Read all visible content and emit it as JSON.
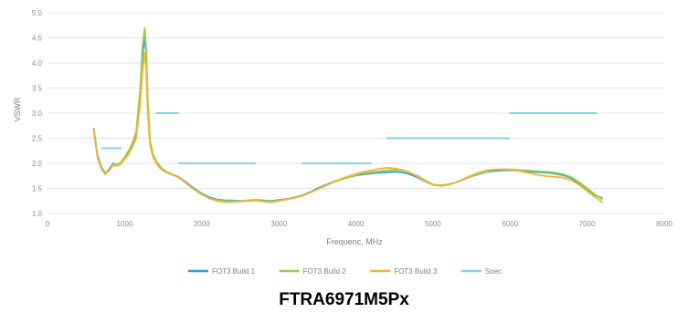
{
  "caption": "FTRA6971M5Px",
  "chart_data": {
    "type": "line",
    "title": "",
    "xlabel": "Frequenc, MHz",
    "ylabel": "VSWR",
    "xlim": [
      0,
      8000
    ],
    "ylim": [
      1.0,
      5.0
    ],
    "xticks": [
      0,
      1000,
      2000,
      3000,
      4000,
      5000,
      6000,
      7000,
      8000
    ],
    "yticks": [
      1.0,
      1.5,
      2.0,
      2.5,
      3.0,
      3.5,
      4.0,
      4.5,
      5.0
    ],
    "xtick_labels": [
      "0",
      "1000",
      "2000",
      "3000",
      "4000",
      "5000",
      "6000",
      "7000",
      "8000"
    ],
    "ytick_labels": [
      "1.0",
      "1.5",
      "2.0",
      "2.5",
      "3.0",
      "3.5",
      "4.0",
      "4.5",
      "5.0"
    ],
    "grid": "horizontal",
    "legend_position": "bottom",
    "series": [
      {
        "name": "FOT3 Build 1",
        "color": "#2e9fd4",
        "x": [
          600,
          650,
          700,
          750,
          800,
          850,
          900,
          950,
          1000,
          1050,
          1100,
          1150,
          1200,
          1230,
          1260,
          1280,
          1300,
          1330,
          1370,
          1420,
          1480,
          1550,
          1620,
          1700,
          1800,
          1900,
          2000,
          2100,
          2200,
          2300,
          2400,
          2500,
          2600,
          2700,
          2800,
          2900,
          3000,
          3100,
          3200,
          3300,
          3400,
          3500,
          3600,
          3700,
          3800,
          3900,
          4000,
          4100,
          4200,
          4300,
          4400,
          4500,
          4600,
          4700,
          4800,
          4900,
          5000,
          5100,
          5200,
          5300,
          5400,
          5500,
          5600,
          5700,
          5800,
          5900,
          6000,
          6100,
          6200,
          6300,
          6400,
          6500,
          6600,
          6700,
          6800,
          6900,
          7000,
          7100,
          7200
        ],
        "y": [
          2.7,
          2.15,
          1.92,
          1.8,
          1.88,
          2.0,
          1.97,
          2.0,
          2.1,
          2.2,
          2.35,
          2.55,
          3.3,
          4.1,
          4.55,
          4.2,
          3.2,
          2.4,
          2.15,
          2.0,
          1.88,
          1.82,
          1.78,
          1.73,
          1.62,
          1.5,
          1.4,
          1.32,
          1.28,
          1.26,
          1.26,
          1.25,
          1.26,
          1.27,
          1.26,
          1.25,
          1.27,
          1.29,
          1.32,
          1.36,
          1.42,
          1.5,
          1.57,
          1.63,
          1.68,
          1.72,
          1.76,
          1.78,
          1.8,
          1.81,
          1.82,
          1.83,
          1.82,
          1.78,
          1.72,
          1.64,
          1.57,
          1.56,
          1.58,
          1.62,
          1.68,
          1.74,
          1.79,
          1.83,
          1.85,
          1.86,
          1.86,
          1.86,
          1.84,
          1.83,
          1.82,
          1.81,
          1.79,
          1.76,
          1.7,
          1.6,
          1.48,
          1.37,
          1.3
        ]
      },
      {
        "name": "FOT3 Build 2",
        "color": "#92d050",
        "x": [
          600,
          650,
          700,
          750,
          800,
          850,
          900,
          950,
          1000,
          1050,
          1100,
          1150,
          1200,
          1230,
          1260,
          1280,
          1300,
          1330,
          1370,
          1420,
          1480,
          1550,
          1620,
          1700,
          1800,
          1900,
          2000,
          2100,
          2200,
          2300,
          2400,
          2500,
          2600,
          2700,
          2800,
          2900,
          3000,
          3100,
          3200,
          3300,
          3400,
          3500,
          3600,
          3700,
          3800,
          3900,
          4000,
          4100,
          4200,
          4300,
          4400,
          4500,
          4600,
          4700,
          4800,
          4900,
          5000,
          5100,
          5200,
          5300,
          5400,
          5500,
          5600,
          5700,
          5800,
          5900,
          6000,
          6100,
          6200,
          6300,
          6400,
          6500,
          6600,
          6700,
          6800,
          6900,
          7000,
          7100,
          7200
        ],
        "y": [
          2.65,
          2.12,
          1.9,
          1.8,
          1.85,
          1.98,
          1.98,
          2.02,
          2.12,
          2.25,
          2.4,
          2.62,
          3.45,
          4.3,
          4.7,
          4.3,
          3.3,
          2.45,
          2.18,
          2.02,
          1.9,
          1.83,
          1.78,
          1.72,
          1.6,
          1.48,
          1.38,
          1.3,
          1.27,
          1.25,
          1.25,
          1.24,
          1.25,
          1.26,
          1.25,
          1.24,
          1.26,
          1.28,
          1.31,
          1.35,
          1.41,
          1.48,
          1.55,
          1.62,
          1.67,
          1.72,
          1.77,
          1.8,
          1.82,
          1.84,
          1.86,
          1.87,
          1.86,
          1.82,
          1.75,
          1.66,
          1.58,
          1.56,
          1.58,
          1.62,
          1.68,
          1.75,
          1.8,
          1.84,
          1.87,
          1.88,
          1.88,
          1.87,
          1.86,
          1.85,
          1.84,
          1.83,
          1.81,
          1.78,
          1.72,
          1.62,
          1.5,
          1.38,
          1.28
        ]
      },
      {
        "name": "FOT3 Build 3",
        "color": "#f5b335",
        "x": [
          600,
          650,
          700,
          750,
          800,
          850,
          900,
          950,
          1000,
          1050,
          1100,
          1150,
          1200,
          1230,
          1260,
          1280,
          1300,
          1330,
          1370,
          1420,
          1480,
          1550,
          1620,
          1700,
          1800,
          1900,
          2000,
          2100,
          2200,
          2300,
          2400,
          2500,
          2600,
          2700,
          2800,
          2900,
          3000,
          3100,
          3200,
          3300,
          3400,
          3500,
          3600,
          3700,
          3800,
          3900,
          4000,
          4100,
          4200,
          4300,
          4400,
          4500,
          4600,
          4700,
          4800,
          4900,
          5000,
          5100,
          5200,
          5300,
          5400,
          5500,
          5600,
          5700,
          5800,
          5900,
          6000,
          6100,
          6200,
          6300,
          6400,
          6500,
          6600,
          6700,
          6800,
          6900,
          7000,
          7100,
          7200
        ],
        "y": [
          2.68,
          2.1,
          1.88,
          1.78,
          1.86,
          1.96,
          1.95,
          1.99,
          2.08,
          2.18,
          2.32,
          2.5,
          3.15,
          3.8,
          4.2,
          3.9,
          3.0,
          2.35,
          2.12,
          1.98,
          1.87,
          1.81,
          1.77,
          1.72,
          1.6,
          1.48,
          1.38,
          1.3,
          1.25,
          1.23,
          1.23,
          1.24,
          1.26,
          1.26,
          1.24,
          1.22,
          1.25,
          1.28,
          1.31,
          1.35,
          1.41,
          1.48,
          1.56,
          1.63,
          1.69,
          1.74,
          1.79,
          1.83,
          1.86,
          1.89,
          1.91,
          1.9,
          1.87,
          1.82,
          1.74,
          1.65,
          1.57,
          1.55,
          1.57,
          1.62,
          1.69,
          1.76,
          1.82,
          1.86,
          1.88,
          1.88,
          1.87,
          1.85,
          1.82,
          1.79,
          1.76,
          1.74,
          1.73,
          1.71,
          1.66,
          1.57,
          1.45,
          1.33,
          1.22
        ]
      },
      {
        "name": "Spec",
        "color": "#7fd3df",
        "segments": [
          {
            "x": [
              700,
              960
            ],
            "y": [
              2.3,
              2.3
            ]
          },
          {
            "x": [
              1410,
              1700
            ],
            "y": [
              3.0,
              3.0
            ]
          },
          {
            "x": [
              1700,
              2700
            ],
            "y": [
              2.0,
              2.0
            ]
          },
          {
            "x": [
              3300,
              4200
            ],
            "y": [
              2.0,
              2.0
            ]
          },
          {
            "x": [
              4400,
              6000
            ],
            "y": [
              2.5,
              2.5
            ]
          },
          {
            "x": [
              6000,
              7125
            ],
            "y": [
              3.0,
              3.0
            ]
          }
        ]
      }
    ]
  }
}
